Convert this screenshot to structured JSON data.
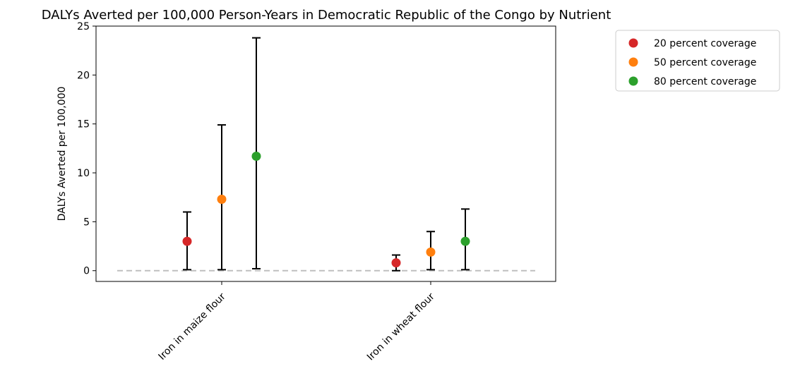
{
  "chart_data": {
    "type": "scatter",
    "title": "DALYs Averted per 100,000 Person-Years in Democratic Republic of the Congo by Nutrient",
    "xlabel": "",
    "ylabel": "DALYs Averted per 100,000",
    "categories": [
      "Iron in maize flour",
      "Iron in wheat flour"
    ],
    "ylim": [
      -1.1,
      25
    ],
    "yticks": [
      0,
      5,
      10,
      15,
      20,
      25
    ],
    "grid": false,
    "legend_position": "outside top-right",
    "reference_line": {
      "y": 0,
      "style": "dashed",
      "color": "#bfbfbf"
    },
    "series": [
      {
        "name": "20 percent coverage",
        "color": "#d62728",
        "values": [
          3.0,
          0.8
        ],
        "lower": [
          0.1,
          0.0
        ],
        "upper": [
          6.0,
          1.6
        ]
      },
      {
        "name": "50 percent coverage",
        "color": "#ff7f0e",
        "values": [
          7.3,
          1.9
        ],
        "lower": [
          0.1,
          0.1
        ],
        "upper": [
          14.9,
          4.0
        ]
      },
      {
        "name": "80 percent coverage",
        "color": "#2ca02c",
        "values": [
          11.7,
          3.0
        ],
        "lower": [
          0.2,
          0.1
        ],
        "upper": [
          23.8,
          6.3
        ]
      }
    ]
  }
}
